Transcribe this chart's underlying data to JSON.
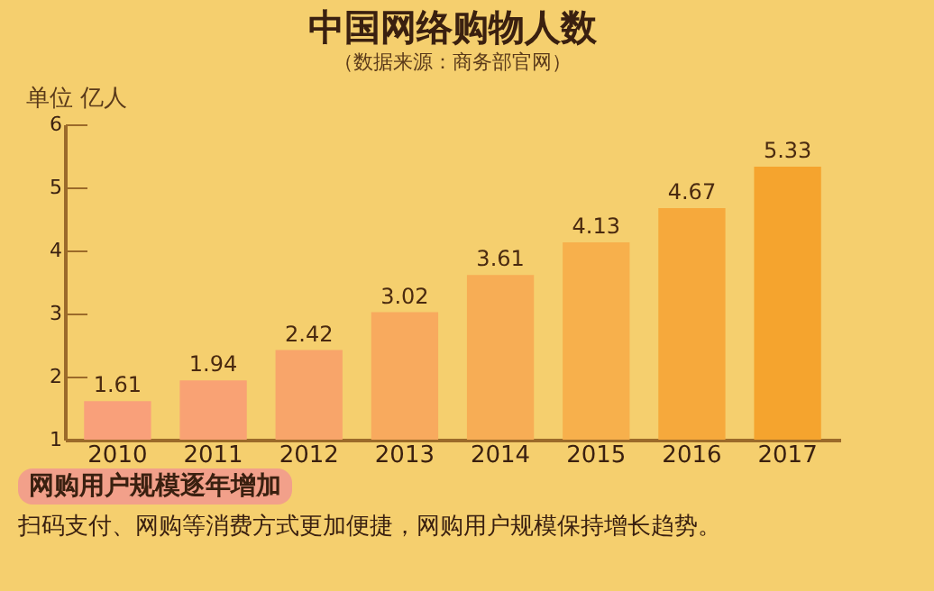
{
  "chart_data": {
    "type": "bar",
    "title": "中国网络购物人数",
    "subtitle": "（数据来源：商务部官网）",
    "ylabel": "单位 亿人",
    "categories": [
      "2010",
      "2011",
      "2012",
      "2013",
      "2014",
      "2015",
      "2016",
      "2017"
    ],
    "values": [
      1.61,
      1.94,
      2.42,
      3.02,
      3.61,
      4.13,
      4.67,
      5.33
    ],
    "colors": [
      "#f9a07a",
      "#f9a274",
      "#f8a56a",
      "#f8aa5e",
      "#f7ad55",
      "#f7b04c",
      "#f6a93c",
      "#f5a42e"
    ],
    "ylim": [
      1,
      6
    ],
    "yticks": [
      1,
      2,
      3,
      4,
      5,
      6
    ],
    "data_labels": true,
    "grid": false,
    "annotations": [
      "网购用户规模逐年增加",
      "扫码支付、网购等消费方式更加便捷，网购用户规模保持增长趋势。"
    ]
  }
}
